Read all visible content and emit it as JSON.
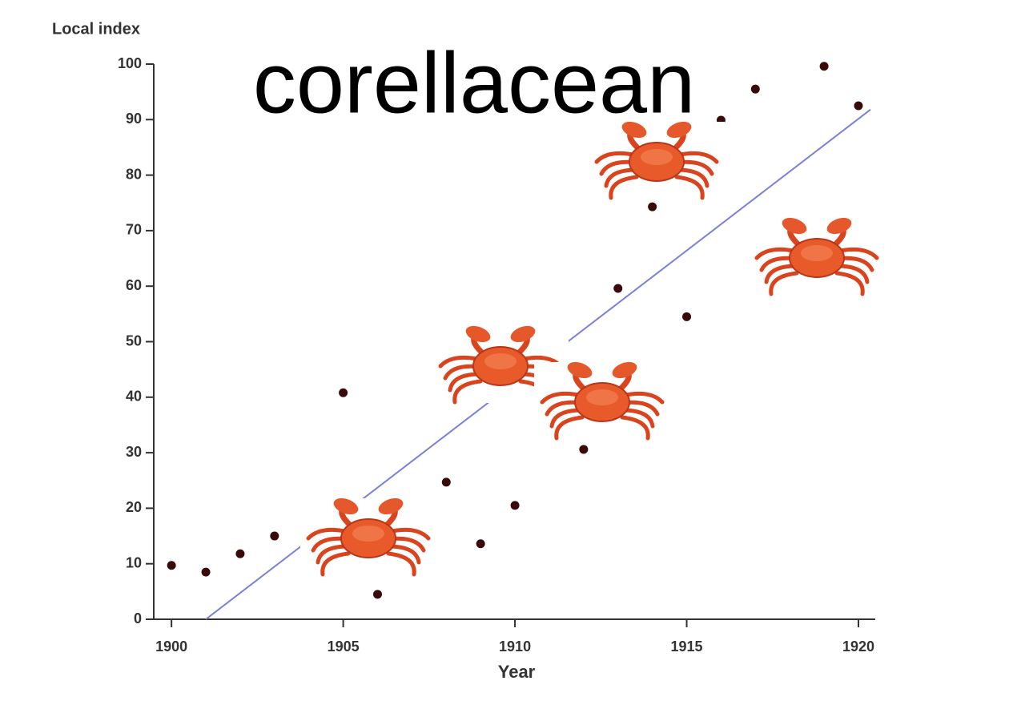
{
  "chart_data": {
    "type": "scatter",
    "y_label": "Local index",
    "x_label": "Year",
    "annotation": "corellacean",
    "xlim": [
      1899.67,
      1920.49
    ],
    "ylim": [
      0,
      100
    ],
    "xticks": [
      1900,
      1905,
      1910,
      1915,
      1920
    ],
    "yticks": [
      0,
      10,
      20,
      30,
      40,
      50,
      60,
      70,
      80,
      90,
      100
    ],
    "series": [
      {
        "type": "scatter",
        "color": "#3a0a0a",
        "x": [
          1900,
          1901,
          1902,
          1903,
          1905,
          1906,
          1908,
          1909,
          1910,
          1912,
          1913,
          1914,
          1915,
          1916,
          1917,
          1919,
          1920
        ],
        "values": [
          9.7,
          8.5,
          11.8,
          15.0,
          40.8,
          4.5,
          24.7,
          13.6,
          20.5,
          30.6,
          59.6,
          74.3,
          54.5,
          89.9,
          95.5,
          99.6,
          92.5
        ]
      },
      {
        "type": "line",
        "color": "#7b7fd6",
        "x": [
          1901.0,
          1920.35
        ],
        "values": [
          0,
          91.8
        ]
      }
    ]
  }
}
